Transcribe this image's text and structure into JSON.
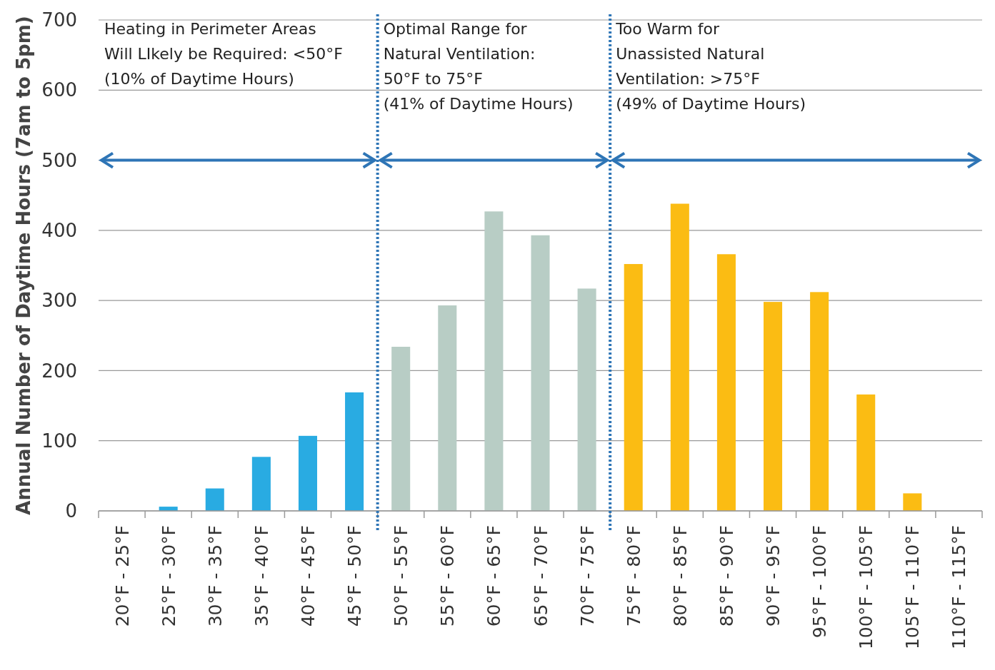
{
  "chart_data": {
    "type": "bar",
    "ylabel": "Annual Number of  Daytime Hours (7am to 5pm)",
    "categories": [
      "20°F - 25°F",
      "25°F - 30°F",
      "30°F - 35°F",
      "35°F - 40°F",
      "40°F - 45°F",
      "45°F - 50°F",
      "50°F - 55°F",
      "55°F - 60°F",
      "60°F - 65°F",
      "65°F - 70°F",
      "70°F - 75°F",
      "75°F - 80°F",
      "80°F - 85°F",
      "85°F - 90°F",
      "90°F - 95°F",
      "95°F - 100°F",
      "100°F - 105°F",
      "105°F - 110°F",
      "110°F - 115°F"
    ],
    "values": [
      0,
      6,
      32,
      77,
      107,
      169,
      234,
      293,
      427,
      393,
      317,
      352,
      438,
      366,
      298,
      312,
      166,
      25,
      0
    ],
    "colors": [
      "#29abe2",
      "#29abe2",
      "#29abe2",
      "#29abe2",
      "#29abe2",
      "#29abe2",
      "#b8cdc5",
      "#b8cdc5",
      "#b8cdc5",
      "#b8cdc5",
      "#b8cdc5",
      "#fbbc13",
      "#fbbc13",
      "#fbbc13",
      "#fbbc13",
      "#fbbc13",
      "#fbbc13",
      "#fbbc13",
      "#fbbc13"
    ],
    "ylim": [
      0,
      700
    ],
    "yticks": [
      0,
      100,
      200,
      300,
      400,
      500,
      600,
      700
    ],
    "grid": "y",
    "annotations": [
      "Heating in Perimeter Areas\nWill LIkely be Required: <50°F\n(10% of Daytime Hours)",
      "Optimal Range for\nNatural Ventilation:\n50°F to 75°F\n(41% of Daytime Hours)",
      "Too Warm for\nUnassisted Natural\nVentilation: >75°F\n(49% of Daytime Hours)"
    ]
  }
}
